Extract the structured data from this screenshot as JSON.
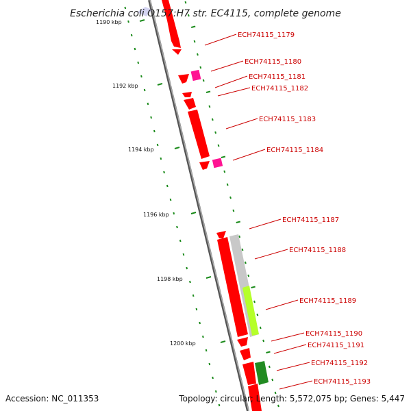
{
  "title": "Escherichia coli O157:H7 str. EC4115, complete genome",
  "accession": "Accession: NC_011353",
  "topology": "Topology: circular; Length: 5,572,075 bp; Genes: 5,447",
  "kbp_ticks": [
    "1190 kbp",
    "1192 kbp",
    "1194 kbp",
    "1196 kbp",
    "1198 kbp",
    "1200 kbp"
  ],
  "gene_labels": [
    "ECH74115_1179",
    "ECH74115_1180",
    "ECH74115_1181",
    "ECH74115_1182",
    "ECH74115_1183",
    "ECH74115_1184",
    "ECH74115_1187",
    "ECH74115_1188",
    "ECH74115_1189",
    "ECH74115_1190",
    "ECH74115_1191",
    "ECH74115_1192",
    "ECH74115_1193"
  ],
  "colors": {
    "backbone": "#7f7f7f",
    "gene_red": "#ff0000",
    "gene_pink": "#ff1493",
    "gene_gray": "#c8c8c8",
    "gene_yellowgreen": "#b5ff2a",
    "gene_green": "#228b22",
    "tick_green": "#1a8a1a"
  }
}
